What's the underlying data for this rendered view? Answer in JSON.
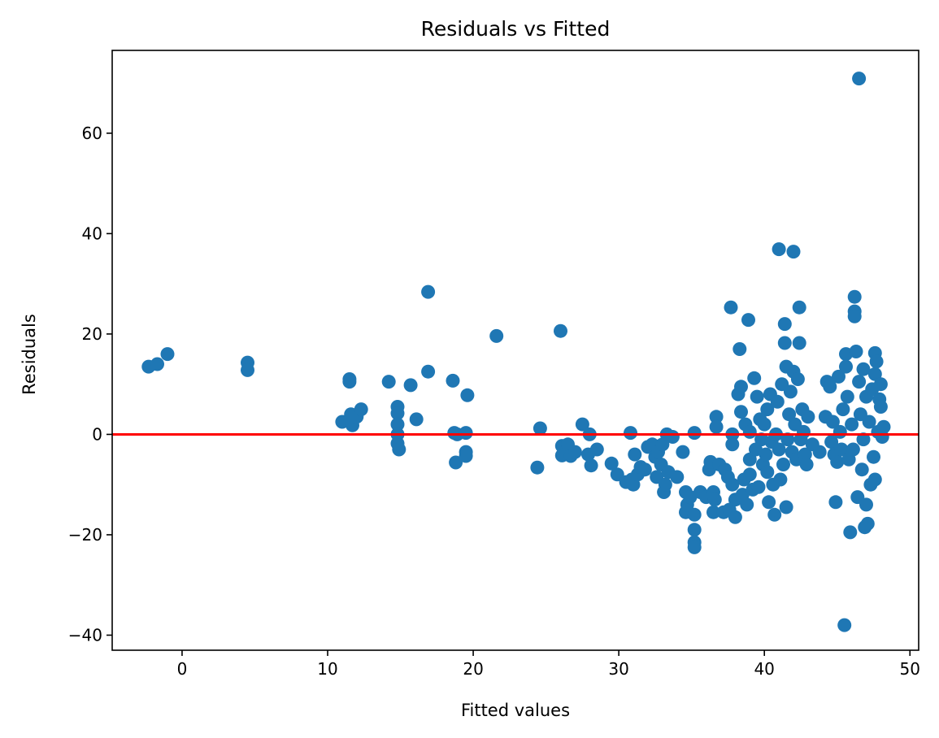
{
  "chart_data": {
    "type": "scatter",
    "title": "Residuals vs Fitted",
    "xlabel": "Fitted values",
    "ylabel": "Residuals",
    "xlim": [
      -4.8,
      50.6
    ],
    "ylim": [
      -43.0,
      76.5
    ],
    "xticks": [
      0,
      10,
      20,
      30,
      40,
      50
    ],
    "yticks": [
      -40,
      -20,
      0,
      20,
      40,
      60
    ],
    "xtick_labels": [
      "0",
      "10",
      "20",
      "30",
      "40",
      "50"
    ],
    "ytick_labels": [
      "−40",
      "−20",
      "0",
      "20",
      "40",
      "60"
    ],
    "grid": false,
    "reference_line": {
      "y": 0,
      "color": "#ff0000"
    },
    "marker_color": "#1f77b4",
    "points": [
      [
        -2.3,
        13.5
      ],
      [
        -1.7,
        14.0
      ],
      [
        -1.0,
        16.0
      ],
      [
        4.5,
        14.3
      ],
      [
        4.5,
        12.8
      ],
      [
        11.0,
        2.5
      ],
      [
        11.5,
        11.0
      ],
      [
        11.5,
        10.5
      ],
      [
        11.6,
        4.0
      ],
      [
        11.7,
        1.8
      ],
      [
        12.0,
        3.5
      ],
      [
        12.3,
        5.0
      ],
      [
        14.2,
        10.5
      ],
      [
        14.8,
        5.5
      ],
      [
        14.8,
        4.2
      ],
      [
        14.8,
        2.0
      ],
      [
        14.8,
        0.0
      ],
      [
        14.8,
        -1.8
      ],
      [
        14.9,
        -3.0
      ],
      [
        15.7,
        9.8
      ],
      [
        16.1,
        3.0
      ],
      [
        16.9,
        12.5
      ],
      [
        16.9,
        28.4
      ],
      [
        18.6,
        10.7
      ],
      [
        18.7,
        0.3
      ],
      [
        18.8,
        -5.6
      ],
      [
        18.9,
        0.0
      ],
      [
        19.5,
        0.3
      ],
      [
        19.5,
        -3.5
      ],
      [
        19.5,
        -4.3
      ],
      [
        19.6,
        7.8
      ],
      [
        21.6,
        19.6
      ],
      [
        24.4,
        -6.6
      ],
      [
        24.6,
        1.2
      ],
      [
        26.0,
        20.6
      ],
      [
        26.1,
        -2.3
      ],
      [
        26.1,
        -4.2
      ],
      [
        26.5,
        -2.0
      ],
      [
        26.7,
        -4.3
      ],
      [
        27.0,
        -3.5
      ],
      [
        27.5,
        2.0
      ],
      [
        27.9,
        -4.0
      ],
      [
        28.0,
        0.0
      ],
      [
        28.1,
        -6.2
      ],
      [
        28.5,
        -3.0
      ],
      [
        29.5,
        -5.8
      ],
      [
        29.9,
        -8.0
      ],
      [
        30.5,
        -9.5
      ],
      [
        30.8,
        0.3
      ],
      [
        30.9,
        -9.0
      ],
      [
        31.0,
        -10.0
      ],
      [
        31.1,
        -4.0
      ],
      [
        31.3,
        -8.0
      ],
      [
        31.5,
        -6.5
      ],
      [
        31.8,
        -7.0
      ],
      [
        32.0,
        -2.5
      ],
      [
        32.3,
        -2.0
      ],
      [
        32.5,
        -4.5
      ],
      [
        32.6,
        -8.5
      ],
      [
        32.7,
        -3.5
      ],
      [
        32.9,
        -6.0
      ],
      [
        33.0,
        -2.0
      ],
      [
        33.1,
        -11.5
      ],
      [
        33.2,
        -10.0
      ],
      [
        33.3,
        0.0
      ],
      [
        33.4,
        -7.5
      ],
      [
        33.7,
        -0.5
      ],
      [
        34.0,
        -8.5
      ],
      [
        34.4,
        -3.5
      ],
      [
        34.6,
        -11.5
      ],
      [
        34.6,
        -15.5
      ],
      [
        34.7,
        -14.0
      ],
      [
        34.9,
        -12.5
      ],
      [
        35.2,
        -16.0
      ],
      [
        35.2,
        -19.0
      ],
      [
        35.2,
        -21.5
      ],
      [
        35.2,
        -22.5
      ],
      [
        35.2,
        0.3
      ],
      [
        35.6,
        -11.5
      ],
      [
        36.0,
        -12.5
      ],
      [
        36.2,
        -7.0
      ],
      [
        36.3,
        -5.5
      ],
      [
        36.5,
        -15.5
      ],
      [
        36.5,
        -11.5
      ],
      [
        36.6,
        -13.0
      ],
      [
        36.7,
        3.5
      ],
      [
        36.7,
        1.5
      ],
      [
        36.9,
        -6.0
      ],
      [
        37.2,
        -15.5
      ],
      [
        37.3,
        -7.0
      ],
      [
        37.5,
        -8.5
      ],
      [
        37.6,
        -15.0
      ],
      [
        37.7,
        25.3
      ],
      [
        37.8,
        0.0
      ],
      [
        37.8,
        -2.0
      ],
      [
        37.8,
        -10.0
      ],
      [
        38.0,
        -13.0
      ],
      [
        38.0,
        -16.5
      ],
      [
        38.2,
        8.0
      ],
      [
        38.3,
        17.0
      ],
      [
        38.4,
        4.5
      ],
      [
        38.4,
        9.5
      ],
      [
        38.5,
        -12.0
      ],
      [
        38.6,
        -9.0
      ],
      [
        38.7,
        2.0
      ],
      [
        38.8,
        -14.0
      ],
      [
        38.9,
        22.8
      ],
      [
        39.0,
        0.5
      ],
      [
        39.0,
        -5.0
      ],
      [
        39.0,
        -8.0
      ],
      [
        39.2,
        -11.0
      ],
      [
        39.3,
        11.2
      ],
      [
        39.4,
        -3.0
      ],
      [
        39.5,
        7.5
      ],
      [
        39.6,
        -10.5
      ],
      [
        39.7,
        3.0
      ],
      [
        39.8,
        -1.0
      ],
      [
        39.9,
        -6.0
      ],
      [
        40.0,
        2.0
      ],
      [
        40.1,
        -4.0
      ],
      [
        40.2,
        5.0
      ],
      [
        40.2,
        -7.5
      ],
      [
        40.3,
        -13.5
      ],
      [
        40.4,
        8.0
      ],
      [
        40.5,
        -1.5
      ],
      [
        40.6,
        -10.0
      ],
      [
        40.7,
        -16.0
      ],
      [
        40.8,
        0.0
      ],
      [
        40.9,
        6.5
      ],
      [
        41.0,
        -3.0
      ],
      [
        41.0,
        36.9
      ],
      [
        41.1,
        -9.0
      ],
      [
        41.2,
        10.0
      ],
      [
        41.3,
        -6.0
      ],
      [
        41.4,
        22.0
      ],
      [
        41.4,
        18.2
      ],
      [
        41.5,
        13.5
      ],
      [
        41.5,
        -14.5
      ],
      [
        41.6,
        -1.0
      ],
      [
        41.7,
        4.0
      ],
      [
        41.8,
        8.5
      ],
      [
        41.9,
        -3.5
      ],
      [
        42.0,
        36.4
      ],
      [
        42.0,
        12.5
      ],
      [
        42.1,
        2.0
      ],
      [
        42.2,
        -5.0
      ],
      [
        42.3,
        11.0
      ],
      [
        42.4,
        18.2
      ],
      [
        42.4,
        25.3
      ],
      [
        42.5,
        -1.0
      ],
      [
        42.6,
        5.0
      ],
      [
        42.7,
        0.5
      ],
      [
        42.8,
        -4.0
      ],
      [
        42.9,
        -6.0
      ],
      [
        43.0,
        3.5
      ],
      [
        43.3,
        -2.0
      ],
      [
        43.8,
        -3.5
      ],
      [
        44.2,
        3.5
      ],
      [
        44.3,
        10.5
      ],
      [
        44.5,
        9.5
      ],
      [
        44.6,
        -1.5
      ],
      [
        44.7,
        2.5
      ],
      [
        44.8,
        -4.0
      ],
      [
        44.9,
        -13.5
      ],
      [
        45.0,
        -5.5
      ],
      [
        45.1,
        11.5
      ],
      [
        45.2,
        0.5
      ],
      [
        45.3,
        -3.0
      ],
      [
        45.4,
        5.0
      ],
      [
        45.5,
        -38.0
      ],
      [
        45.6,
        16.0
      ],
      [
        45.6,
        13.5
      ],
      [
        45.7,
        7.5
      ],
      [
        45.8,
        -5.0
      ],
      [
        45.9,
        -19.5
      ],
      [
        46.0,
        2.0
      ],
      [
        46.1,
        -3.0
      ],
      [
        46.2,
        27.4
      ],
      [
        46.2,
        24.5
      ],
      [
        46.2,
        23.5
      ],
      [
        46.3,
        16.5
      ],
      [
        46.4,
        -12.5
      ],
      [
        46.5,
        10.5
      ],
      [
        46.5,
        70.9
      ],
      [
        46.6,
        4.0
      ],
      [
        46.7,
        -7.0
      ],
      [
        46.8,
        13.0
      ],
      [
        46.8,
        -1.0
      ],
      [
        46.9,
        -18.5
      ],
      [
        47.0,
        7.5
      ],
      [
        47.0,
        -14.0
      ],
      [
        47.1,
        -17.8
      ],
      [
        47.2,
        2.5
      ],
      [
        47.3,
        -10.0
      ],
      [
        47.4,
        9.0
      ],
      [
        47.5,
        -4.5
      ],
      [
        47.6,
        16.2
      ],
      [
        47.6,
        12.0
      ],
      [
        47.6,
        -9.0
      ],
      [
        47.7,
        14.5
      ],
      [
        47.8,
        0.5
      ],
      [
        47.9,
        7.0
      ],
      [
        48.0,
        10.0
      ],
      [
        48.0,
        5.5
      ],
      [
        48.1,
        -0.5
      ],
      [
        48.2,
        1.5
      ]
    ]
  }
}
